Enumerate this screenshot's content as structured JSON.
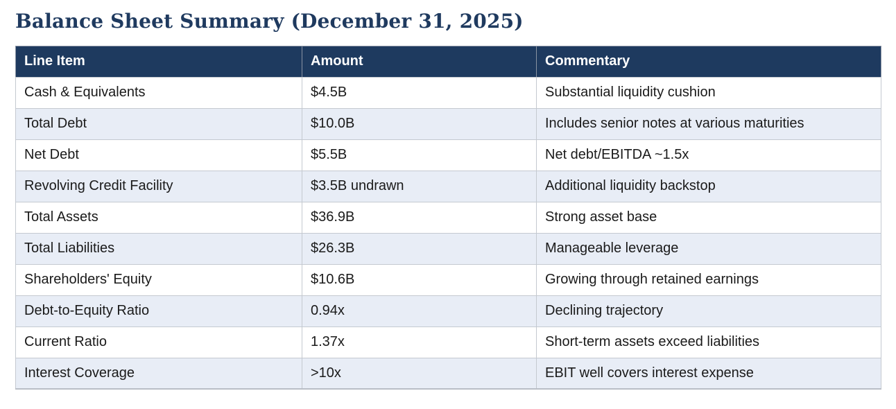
{
  "page": {
    "title": "Balance Sheet Summary (December 31, 2025)"
  },
  "colors": {
    "header_background": "#1e3a5f",
    "header_text": "#ffffff",
    "title_text": "#1f3a5f",
    "row_alt_background": "#e8edf6",
    "row_background": "#ffffff",
    "body_text": "#1a1a1a",
    "grid_border": "#c4c9d0"
  },
  "table": {
    "columns": [
      "Line Item",
      "Amount",
      "Commentary"
    ],
    "rows": [
      [
        "Cash & Equivalents",
        "$4.5B",
        "Substantial liquidity cushion"
      ],
      [
        "Total Debt",
        "$10.0B",
        "Includes senior notes at various maturities"
      ],
      [
        "Net Debt",
        "$5.5B",
        "Net debt/EBITDA ~1.5x"
      ],
      [
        "Revolving Credit Facility",
        "$3.5B undrawn",
        "Additional liquidity backstop"
      ],
      [
        "Total Assets",
        "$36.9B",
        "Strong asset base"
      ],
      [
        "Total Liabilities",
        "$26.3B",
        "Manageable leverage"
      ],
      [
        "Shareholders' Equity",
        "$10.6B",
        "Growing through retained earnings"
      ],
      [
        "Debt-to-Equity Ratio",
        "0.94x",
        "Declining trajectory"
      ],
      [
        "Current Ratio",
        "1.37x",
        "Short-term assets exceed liabilities"
      ],
      [
        "Interest Coverage",
        ">10x",
        "EBIT well covers interest expense"
      ]
    ]
  }
}
